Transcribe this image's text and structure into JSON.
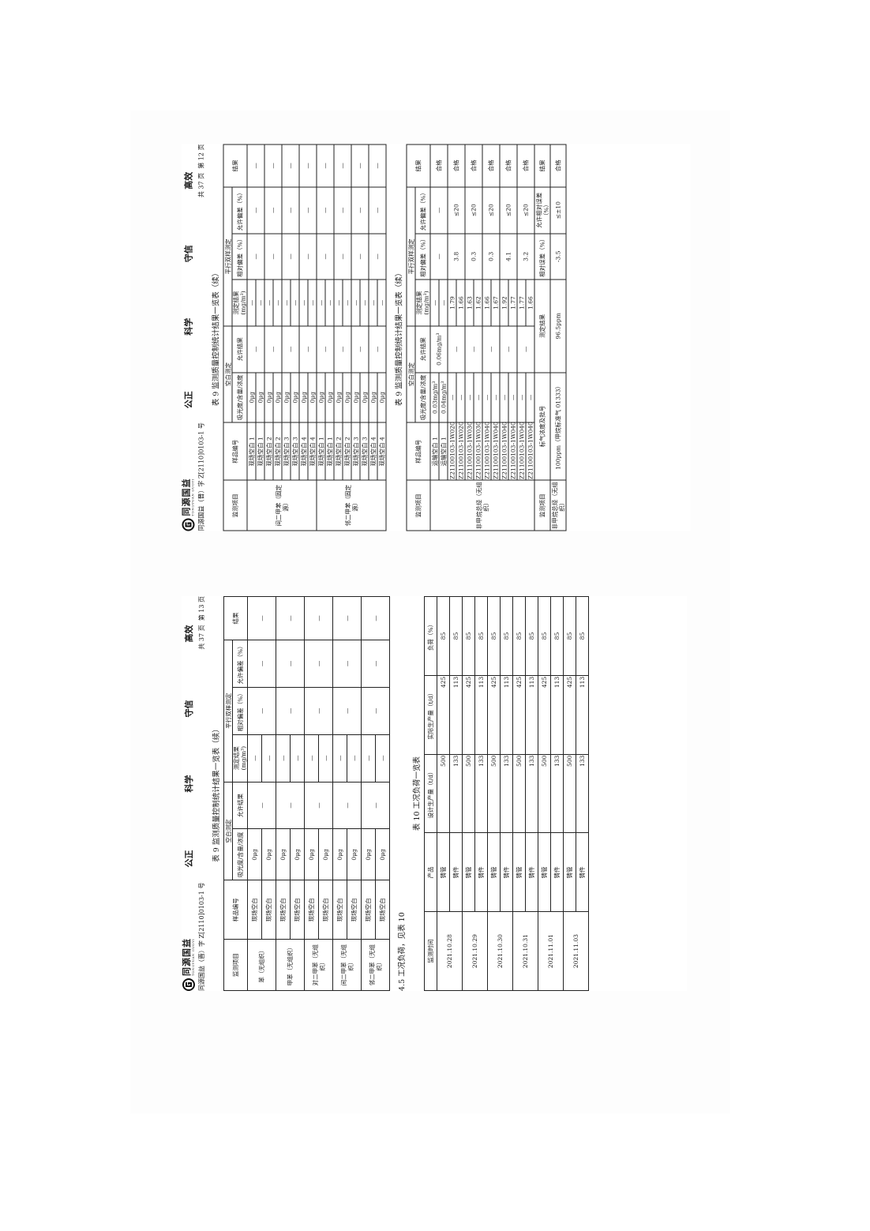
{
  "header": {
    "logo_name": "同源国益",
    "logo_sub": "TONGYUAN GUOYI",
    "slogans": [
      "公正",
      "科学",
      "守信",
      "高效"
    ],
    "report_no": "同源国益（晋）字 Z[2110]0103-1 号",
    "total_pages": "共 37 页"
  },
  "qc_headers": {
    "item": "监测项目",
    "sample": "样品编号",
    "blank": "空白测定",
    "blank_value": "吸光度/含量/浓度",
    "blank_value_b": "吸光度/含量/浓度",
    "allowed": "允许结果",
    "parallel": "平行双样测定",
    "measured": "测定结果(mg/m³)",
    "rel_dev": "相对偏差（%）",
    "allow_dev": "允许偏差（%）",
    "result": "结果"
  },
  "page12": {
    "page_no": "第 12 页",
    "title_a": "表 9 监测质量控制统计结果一览表（续）",
    "title_b": "表 9 监测质量控制统计结果一览表（续）",
    "table_a": [
      {
        "item": "间二甲苯（固定源）",
        "rows": [
          {
            "id": "现场空白 1",
            "blank": "0μg",
            "measured": "—"
          },
          {
            "id": "现场空白 1",
            "blank": "0μg",
            "measured": "—"
          },
          {
            "id": "现场空白 2",
            "blank": "0μg",
            "measured": "—"
          },
          {
            "id": "现场空白 2",
            "blank": "0μg",
            "measured": "—"
          },
          {
            "id": "现场空白 3",
            "blank": "0μg",
            "measured": "—"
          },
          {
            "id": "现场空白 3",
            "blank": "0μg",
            "measured": "—"
          },
          {
            "id": "现场空白 4",
            "blank": "0μg",
            "measured": "—"
          },
          {
            "id": "现场空白 4",
            "blank": "0μg",
            "measured": "—"
          }
        ],
        "pairs": [
          {
            "allowed": "—",
            "rel": "—",
            "allow_dev": "—",
            "result": "—"
          },
          {
            "allowed": "—",
            "rel": "—",
            "allow_dev": "—",
            "result": "—"
          },
          {
            "allowed": "—",
            "rel": "—",
            "allow_dev": "—",
            "result": "—"
          },
          {
            "allowed": "—",
            "rel": "—",
            "allow_dev": "—",
            "result": "—"
          }
        ]
      },
      {
        "item": "邻二甲苯（固定源）",
        "rows": [
          {
            "id": "现场空白 1",
            "blank": "0μg",
            "measured": "—"
          },
          {
            "id": "现场空白 1",
            "blank": "0μg",
            "measured": "—"
          },
          {
            "id": "现场空白 2",
            "blank": "0μg",
            "measured": "—"
          },
          {
            "id": "现场空白 2",
            "blank": "0μg",
            "measured": "—"
          },
          {
            "id": "现场空白 3",
            "blank": "0μg",
            "measured": "—"
          },
          {
            "id": "现场空白 3",
            "blank": "0μg",
            "measured": "—"
          },
          {
            "id": "现场空白 4",
            "blank": "0μg",
            "measured": "—"
          },
          {
            "id": "现场空白 4",
            "blank": "0μg",
            "measured": "—"
          }
        ],
        "pairs": [
          {
            "allowed": "—",
            "rel": "—",
            "allow_dev": "—",
            "result": "—"
          },
          {
            "allowed": "—",
            "rel": "—",
            "allow_dev": "—",
            "result": "—"
          },
          {
            "allowed": "—",
            "rel": "—",
            "allow_dev": "—",
            "result": "—"
          },
          {
            "allowed": "—",
            "rel": "—",
            "allow_dev": "—",
            "result": "—"
          }
        ]
      }
    ],
    "table_b": [
      {
        "item": "非甲烷总烃（无组织）",
        "rows": [
          {
            "id": "运输空白 1",
            "blank": "0.03mg/m³",
            "measured": "—"
          },
          {
            "id": "运输空白 1",
            "blank": "0.04mg/m³",
            "measured": "—"
          },
          {
            "id": "Z21100103-1W0201-12",
            "blank": "—",
            "measured": "1.79"
          },
          {
            "id": "Z21100103-1W0201-12",
            "blank": "—",
            "measured": "1.66"
          },
          {
            "id": "Z21100103-1W0301-11",
            "blank": "—",
            "measured": "1.63"
          },
          {
            "id": "Z21100103-1W0301-11",
            "blank": "—",
            "measured": "1.62"
          },
          {
            "id": "Z21100103-1W0401-4",
            "blank": "—",
            "measured": "1.66"
          },
          {
            "id": "Z21100103-1W0401-4",
            "blank": "—",
            "measured": "1.67"
          },
          {
            "id": "Z21100103-1W0401-5",
            "blank": "—",
            "measured": "1.92"
          },
          {
            "id": "Z21100103-1W0401-5",
            "blank": "—",
            "measured": "1.77"
          },
          {
            "id": "Z21100103-1W0401-12",
            "blank": "—",
            "measured": "1.77"
          },
          {
            "id": "Z21100103-1W0401-12",
            "blank": "—",
            "measured": "1.66"
          }
        ],
        "pairs": [
          {
            "allowed": "0.06mg/m³",
            "rel": "—",
            "allow_dev": "—",
            "result": "合格"
          },
          {
            "allowed": "—",
            "rel": "3.8",
            "allow_dev": "≤20",
            "result": "合格"
          },
          {
            "allowed": "—",
            "rel": "0.3",
            "allow_dev": "≤20",
            "result": "合格"
          },
          {
            "allowed": "—",
            "rel": "0.3",
            "allow_dev": "≤20",
            "result": "合格"
          },
          {
            "allowed": "—",
            "rel": "4.1",
            "allow_dev": "≤20",
            "result": "合格"
          },
          {
            "allowed": "—",
            "rel": "3.2",
            "allow_dev": "≤20",
            "result": "合格"
          }
        ]
      }
    ],
    "std": {
      "headers": [
        "监测项目",
        "标气浓度及批号",
        "测定结果",
        "相对误差（%）",
        "允许相对误差（%）",
        "结果"
      ],
      "values": [
        "非甲烷总烃（无组织）",
        "100ppm（甲烷标准气 01333）",
        "96.5ppm",
        "-3.5",
        "≤±10",
        "合格"
      ]
    }
  },
  "page13": {
    "page_no": "第 13 页",
    "title_a": "表 9 监测质量控制统计结果一览表（续）",
    "table_a": [
      {
        "item": "苯（无组织）",
        "rows": [
          {
            "id": "现场空白",
            "blank": "0μg",
            "measured": "—"
          },
          {
            "id": "现场空白",
            "blank": "0μg",
            "measured": "—"
          }
        ],
        "pairs": [
          {
            "allowed": "—",
            "rel": "—",
            "allow_dev": "—",
            "result": "—"
          }
        ]
      },
      {
        "item": "甲苯（无组织）",
        "rows": [
          {
            "id": "现场空白",
            "blank": "0μg",
            "measured": "—"
          },
          {
            "id": "现场空白",
            "blank": "0μg",
            "measured": "—"
          }
        ],
        "pairs": [
          {
            "allowed": "—",
            "rel": "—",
            "allow_dev": "—",
            "result": "—"
          }
        ]
      },
      {
        "item": "对二甲苯（无组织）",
        "rows": [
          {
            "id": "现场空白",
            "blank": "0μg",
            "measured": "—"
          },
          {
            "id": "现场空白",
            "blank": "0μg",
            "measured": "—"
          }
        ],
        "pairs": [
          {
            "allowed": "—",
            "rel": "—",
            "allow_dev": "—",
            "result": "—"
          }
        ]
      },
      {
        "item": "间二甲苯（无组织）",
        "rows": [
          {
            "id": "现场空白",
            "blank": "0μg",
            "measured": "—"
          },
          {
            "id": "现场空白",
            "blank": "0μg",
            "measured": "—"
          }
        ],
        "pairs": [
          {
            "allowed": "—",
            "rel": "—",
            "allow_dev": "—",
            "result": "—"
          }
        ]
      },
      {
        "item": "邻二甲苯（无组织）",
        "rows": [
          {
            "id": "现场空白",
            "blank": "0μg",
            "measured": "—"
          },
          {
            "id": "现场空白",
            "blank": "0μg",
            "measured": "—"
          }
        ],
        "pairs": [
          {
            "allowed": "—",
            "rel": "—",
            "allow_dev": "—",
            "result": "—"
          }
        ]
      }
    ],
    "section": "4.5 工况负荷，见表 10",
    "title_b": "表 10 工况负荷一览表",
    "load_table": {
      "headers": [
        "监测时间",
        "产品",
        "设计生产量（t/d）",
        "实际生产量（t/d）",
        "负荷（%）"
      ],
      "groups": [
        {
          "date": "2021.10.28",
          "rows": [
            [
              "铸管",
              "500",
              "425",
              "85"
            ],
            [
              "铸件",
              "133",
              "113",
              "85"
            ]
          ]
        },
        {
          "date": "2021.10.29",
          "rows": [
            [
              "铸管",
              "500",
              "425",
              "85"
            ],
            [
              "铸件",
              "133",
              "113",
              "85"
            ]
          ]
        },
        {
          "date": "2021.10.30",
          "rows": [
            [
              "铸管",
              "500",
              "425",
              "85"
            ],
            [
              "铸件",
              "133",
              "113",
              "85"
            ]
          ]
        },
        {
          "date": "2021.10.31",
          "rows": [
            [
              "铸管",
              "500",
              "425",
              "85"
            ],
            [
              "铸件",
              "133",
              "113",
              "85"
            ]
          ]
        },
        {
          "date": "2021.11.01",
          "rows": [
            [
              "铸管",
              "500",
              "425",
              "85"
            ],
            [
              "铸件",
              "133",
              "113",
              "85"
            ]
          ]
        },
        {
          "date": "2021.11.03",
          "rows": [
            [
              "铸管",
              "500",
              "425",
              "85"
            ],
            [
              "铸件",
              "133",
              "113",
              "85"
            ]
          ]
        }
      ]
    }
  }
}
